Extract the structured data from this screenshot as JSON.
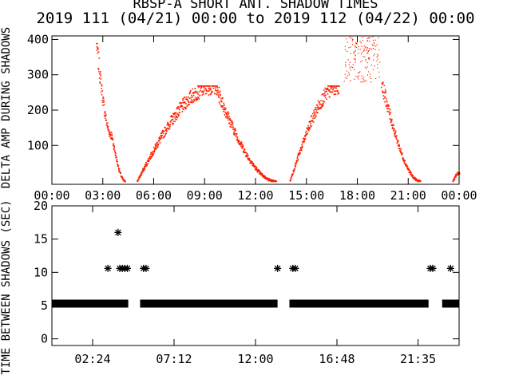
{
  "title": "RBSP-A SHORT ANT. SHADOW TIMES",
  "subtitle": "2019 111 (04/21) 00:00 to 2019 112 (04/22) 00:00",
  "colors": {
    "amp": "#ff2000",
    "gap": "#000000",
    "axis": "#000000"
  },
  "chart_data": [
    {
      "type": "scatter",
      "name": "amp-panel",
      "ylabel": "DELTA AMP DURING SHADOWS",
      "xlim": [
        0,
        24
      ],
      "ylim": [
        -10,
        410
      ],
      "xticks": [
        "00:00",
        "03:00",
        "06:00",
        "09:00",
        "12:00",
        "15:00",
        "18:00",
        "21:00",
        "00:00"
      ],
      "yticks": [
        100,
        200,
        300,
        400
      ],
      "grid": false,
      "arcs": [
        {
          "x0": 2.6,
          "x1": 3.5,
          "y0": 390,
          "y1": 130,
          "note": "descending edge"
        },
        {
          "x0": 3.5,
          "x1": 4.3,
          "y0": 130,
          "y1": 0,
          "note": "descending tail"
        },
        {
          "x0": 5.0,
          "x1": 9.6,
          "y0": 0,
          "y1": 270,
          "note": "rising"
        },
        {
          "x0": 9.6,
          "x1": 13.2,
          "y0": 270,
          "y1": 0,
          "note": "falling"
        },
        {
          "x0": 14.0,
          "x1": 16.9,
          "y0": 0,
          "y1": 270,
          "note": "rising"
        },
        {
          "x0": 19.4,
          "x1": 21.7,
          "y0": 280,
          "y1": 0,
          "note": "falling"
        },
        {
          "x0": 23.6,
          "x1": 24.0,
          "y0": 0,
          "y1": 25,
          "note": "rising start"
        }
      ],
      "scatter_cloud": {
        "x0": 17.2,
        "x1": 19.3,
        "ymin": 280,
        "ymax": 410
      }
    },
    {
      "type": "scatter",
      "name": "gap-panel",
      "ylabel": "TIME BETWEEN SHADOWS (SEC)",
      "xlim": [
        0,
        24
      ],
      "ylim": [
        -1,
        20
      ],
      "xticks": [
        "02:24",
        "07:12",
        "12:00",
        "16:48",
        "21:35"
      ],
      "xtick_hours": [
        2.4,
        7.2,
        12.0,
        16.8,
        21.58
      ],
      "yticks": [
        0,
        5,
        10,
        15,
        20
      ],
      "marker": "asterisk",
      "segments": [
        {
          "x0": 0.0,
          "x1": 4.5,
          "y": 5.3
        },
        {
          "x0": 5.2,
          "x1": 13.3,
          "y": 5.3
        },
        {
          "x0": 14.0,
          "x1": 22.2,
          "y": 5.3
        },
        {
          "x0": 23.0,
          "x1": 24.0,
          "y": 5.3
        }
      ],
      "points": [
        {
          "x": 3.3,
          "y": 10.6
        },
        {
          "x": 3.9,
          "y": 16.0
        },
        {
          "x": 4.0,
          "y": 10.6
        },
        {
          "x": 4.15,
          "y": 10.6
        },
        {
          "x": 4.3,
          "y": 10.6
        },
        {
          "x": 4.45,
          "y": 10.6
        },
        {
          "x": 5.4,
          "y": 10.6
        },
        {
          "x": 5.55,
          "y": 10.6
        },
        {
          "x": 13.3,
          "y": 10.6
        },
        {
          "x": 14.2,
          "y": 10.6
        },
        {
          "x": 14.35,
          "y": 10.6
        },
        {
          "x": 22.3,
          "y": 10.6
        },
        {
          "x": 22.45,
          "y": 10.6
        },
        {
          "x": 23.5,
          "y": 10.6
        }
      ]
    }
  ]
}
